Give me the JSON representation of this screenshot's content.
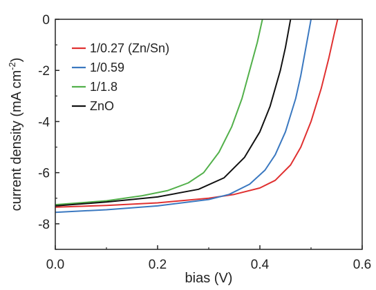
{
  "chart_data": {
    "type": "line",
    "xlabel": "bias (V)",
    "ylabel": "current density (mA cm",
    "ylabel_sup": "-2",
    "ylabel_close": ")",
    "xlim": [
      0.0,
      0.6
    ],
    "ylim": [
      -9,
      0
    ],
    "x_ticks": [
      0.0,
      0.2,
      0.4,
      0.6
    ],
    "x_tick_labels": [
      "0.0",
      "0.2",
      "0.4",
      "0.6"
    ],
    "y_ticks": [
      0,
      -2,
      -4,
      -6,
      -8
    ],
    "y_tick_labels": [
      "0",
      "-2",
      "-4",
      "-6",
      "-8"
    ],
    "grid": false,
    "legend_position": "top-left",
    "series": [
      {
        "name": "1/0.27 (Zn/Sn)",
        "color": "#e03030",
        "x": [
          0.0,
          0.1,
          0.2,
          0.3,
          0.35,
          0.4,
          0.43,
          0.46,
          0.48,
          0.5,
          0.52,
          0.535,
          0.545,
          0.552
        ],
        "y": [
          -7.35,
          -7.28,
          -7.18,
          -7.0,
          -6.85,
          -6.6,
          -6.3,
          -5.7,
          -5.0,
          -4.0,
          -2.7,
          -1.5,
          -0.6,
          0.0
        ]
      },
      {
        "name": "1/0.59",
        "color": "#3a78c0",
        "x": [
          0.0,
          0.1,
          0.2,
          0.3,
          0.34,
          0.38,
          0.41,
          0.43,
          0.45,
          0.47,
          0.48,
          0.49,
          0.5
        ],
        "y": [
          -7.55,
          -7.45,
          -7.3,
          -7.05,
          -6.85,
          -6.45,
          -5.9,
          -5.3,
          -4.4,
          -3.1,
          -2.2,
          -1.1,
          0.0
        ]
      },
      {
        "name": "1/1.8",
        "color": "#52b04a",
        "x": [
          0.0,
          0.1,
          0.17,
          0.22,
          0.26,
          0.29,
          0.32,
          0.345,
          0.365,
          0.38,
          0.395,
          0.405
        ],
        "y": [
          -7.25,
          -7.1,
          -6.9,
          -6.7,
          -6.4,
          -6.0,
          -5.2,
          -4.2,
          -3.1,
          -2.0,
          -0.9,
          0.0
        ]
      },
      {
        "name": "ZnO",
        "color": "#111111",
        "x": [
          0.0,
          0.1,
          0.2,
          0.28,
          0.33,
          0.37,
          0.4,
          0.42,
          0.44,
          0.45,
          0.46
        ],
        "y": [
          -7.3,
          -7.15,
          -6.95,
          -6.65,
          -6.2,
          -5.4,
          -4.4,
          -3.4,
          -2.0,
          -1.1,
          0.0
        ]
      }
    ]
  }
}
